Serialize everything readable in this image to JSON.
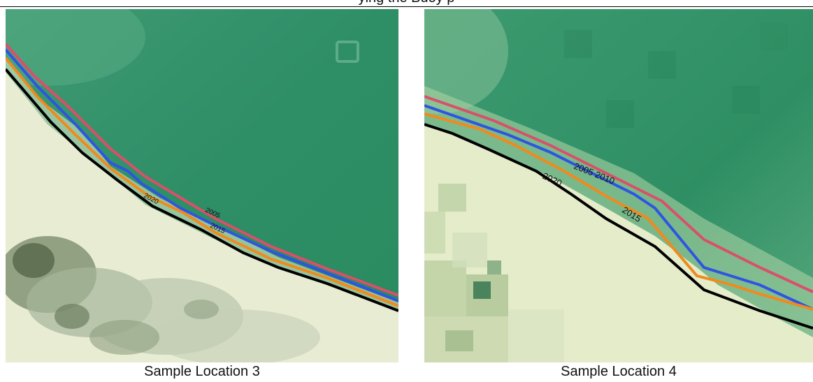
{
  "header": {
    "text": "ying the Buoy                                                          p"
  },
  "legend_colors": {
    "2005": "#d9506a",
    "2010": "#2f55e0",
    "2015": "#f08a1e",
    "2020": "#000000"
  },
  "panels": [
    {
      "caption": "Sample Location 3",
      "labels": {
        "y2020": "2020",
        "y2005": "2005",
        "y2015": "2015"
      }
    },
    {
      "caption": "Sample Location 4",
      "labels": {
        "y2005_2010": "2005 2010",
        "y2020": "2020",
        "y2015": "2015"
      }
    }
  ]
}
